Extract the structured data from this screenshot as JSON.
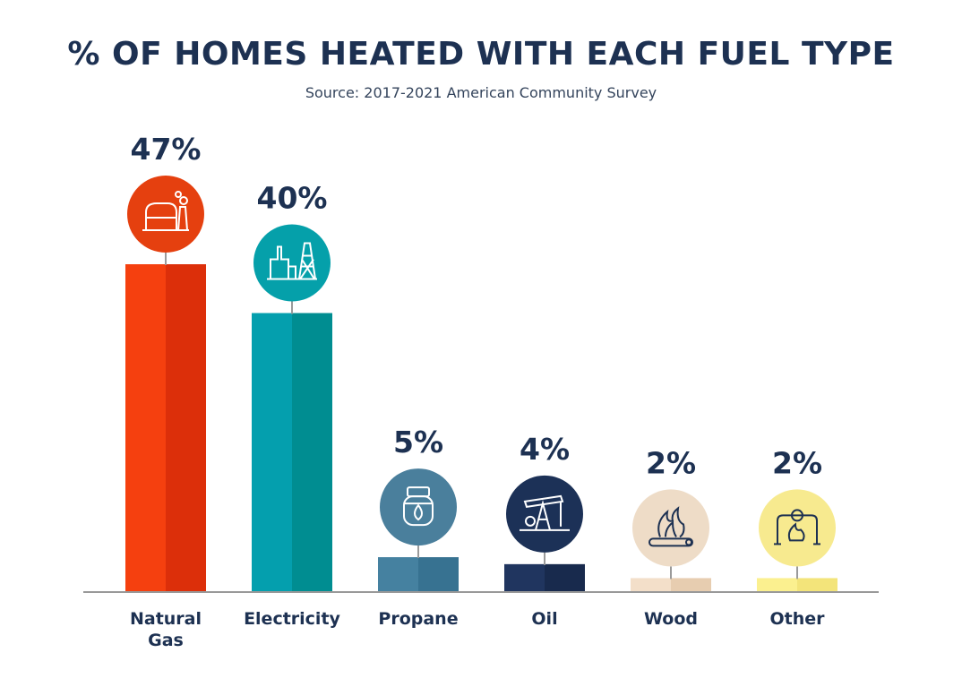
{
  "chart_data": {
    "type": "bar",
    "title": "% OF HOMES HEATED WITH EACH FUEL TYPE",
    "subtitle": "Source: 2017-2021 American Community Survey",
    "unit": "%",
    "xlabel": "",
    "ylabel": "",
    "ylim": [
      0,
      50
    ],
    "grid": false,
    "legend": "none",
    "categories": [
      "Natural Gas",
      "Electricity",
      "Propane",
      "Oil",
      "Wood",
      "Other"
    ],
    "values": [
      47,
      40,
      5,
      4,
      2,
      2
    ],
    "value_labels": [
      "47%",
      "40%",
      "5%",
      "4%",
      "2%",
      "2%"
    ]
  },
  "bars": [
    {
      "label_lines": [
        "Natural",
        "Gas"
      ],
      "icon": "gas-plant-icon",
      "colors": {
        "light": "#f5400f",
        "dark": "#dc2f0a",
        "circle": "#e5400f"
      }
    },
    {
      "label_lines": [
        "Electricity"
      ],
      "icon": "power-plant-icon",
      "colors": {
        "light": "#049fae",
        "dark": "#008d91",
        "circle": "#05a0aa"
      }
    },
    {
      "label_lines": [
        "Propane"
      ],
      "icon": "propane-tank-icon",
      "colors": {
        "light": "#4581a0",
        "dark": "#377291",
        "circle": "#4a7f9c"
      }
    },
    {
      "label_lines": [
        "Oil"
      ],
      "icon": "oil-pump-icon",
      "colors": {
        "light": "#20355f",
        "dark": "#182a4d",
        "circle": "#1c3157"
      }
    },
    {
      "label_lines": [
        "Wood"
      ],
      "icon": "campfire-icon",
      "colors": {
        "light": "#f3dfc9",
        "dark": "#e7cdb0",
        "circle": "#eedcc7"
      }
    },
    {
      "label_lines": [
        "Other"
      ],
      "icon": "pipe-flame-icon",
      "colors": {
        "light": "#fbf08f",
        "dark": "#f3e47a",
        "circle": "#f7ea8f"
      }
    }
  ],
  "style": {
    "title_color": "#1d3152",
    "axis_color": "#999999",
    "icon_stroke": "#ffffff",
    "icon_stroke_dark": "#1d3152"
  }
}
